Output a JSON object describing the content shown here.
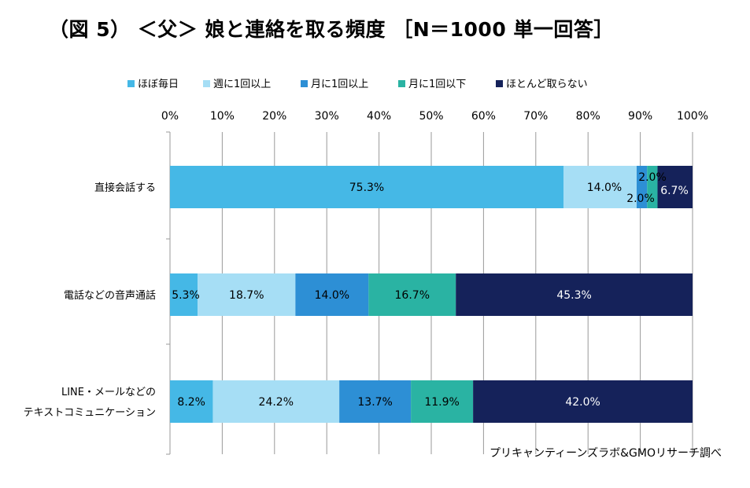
{
  "title": "（図 5） ＜父＞ 娘と連絡を取る頻度 ［N＝1000 単一回答］",
  "credit": "プリキャンティーンズラボ&GMOリサーチ調べ",
  "chart_data": {
    "type": "bar",
    "orientation": "horizontal",
    "stacked": true,
    "percent": true,
    "title": "（図 5） ＜父＞ 娘と連絡を取る頻度 ［N＝1000 単一回答］",
    "xlim": [
      0,
      100
    ],
    "x_ticks": [
      "0%",
      "10%",
      "20%",
      "30%",
      "40%",
      "50%",
      "60%",
      "70%",
      "80%",
      "90%",
      "100%"
    ],
    "categories": [
      "直接会話する",
      "電話などの音声通話",
      "LINE・メールなどの\nテキストコミュニケーション"
    ],
    "legend_position": "top",
    "grid": true,
    "series": [
      {
        "name": "ほぼ毎日",
        "color": "#45b8e6",
        "values": [
          75.3,
          5.3,
          8.2
        ]
      },
      {
        "name": "週に1回以上",
        "color": "#a6def5",
        "values": [
          14.0,
          18.7,
          24.2
        ]
      },
      {
        "name": "月に1回以上",
        "color": "#2d8fd5",
        "values": [
          2.0,
          14.0,
          13.7
        ]
      },
      {
        "name": "月に1回以下",
        "color": "#2ab3a3",
        "values": [
          2.0,
          16.7,
          11.9
        ]
      },
      {
        "name": "ほとんど取らない",
        "color": "#15225a",
        "values": [
          6.7,
          45.3,
          42.0
        ]
      }
    ],
    "data_labels": [
      [
        "75.3%",
        "14.0%",
        "2.0%",
        "2.0%",
        "6.7%"
      ],
      [
        "5.3%",
        "18.7%",
        "14.0%",
        "16.7%",
        "45.3%"
      ],
      [
        "8.2%",
        "24.2%",
        "13.7%",
        "11.9%",
        "42.0%"
      ]
    ]
  }
}
